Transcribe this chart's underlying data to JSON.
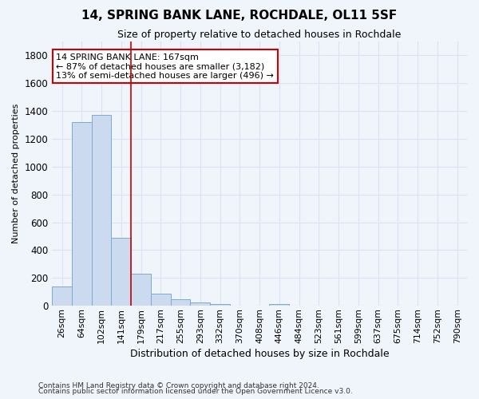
{
  "title": "14, SPRING BANK LANE, ROCHDALE, OL11 5SF",
  "subtitle": "Size of property relative to detached houses in Rochdale",
  "xlabel": "Distribution of detached houses by size in Rochdale",
  "ylabel": "Number of detached properties",
  "footnote1": "Contains HM Land Registry data © Crown copyright and database right 2024.",
  "footnote2": "Contains public sector information licensed under the Open Government Licence v3.0.",
  "bar_labels": [
    "26sqm",
    "64sqm",
    "102sqm",
    "141sqm",
    "179sqm",
    "217sqm",
    "255sqm",
    "293sqm",
    "332sqm",
    "370sqm",
    "408sqm",
    "446sqm",
    "484sqm",
    "523sqm",
    "561sqm",
    "599sqm",
    "637sqm",
    "675sqm",
    "714sqm",
    "752sqm",
    "790sqm"
  ],
  "bar_values": [
    140,
    1320,
    1370,
    490,
    230,
    85,
    50,
    25,
    15,
    0,
    0,
    15,
    0,
    0,
    0,
    0,
    0,
    0,
    0,
    0,
    0
  ],
  "bar_color": "#ccdaf0",
  "bar_edge_color": "#7aaad4",
  "property_line_x": 3.5,
  "annotation_title": "14 SPRING BANK LANE: 167sqm",
  "annotation_line1": "← 87% of detached houses are smaller (3,182)",
  "annotation_line2": "13% of semi-detached houses are larger (496) →",
  "annotation_box_color": "#ffffff",
  "annotation_box_edge_color": "#cc0000",
  "vline_color": "#cc0000",
  "ylim": [
    0,
    1900
  ],
  "yticks": [
    0,
    200,
    400,
    600,
    800,
    1000,
    1200,
    1400,
    1600,
    1800
  ],
  "background_color": "#f0f4fb",
  "grid_color": "#d8e4f5",
  "title_fontsize": 11,
  "subtitle_fontsize": 9
}
